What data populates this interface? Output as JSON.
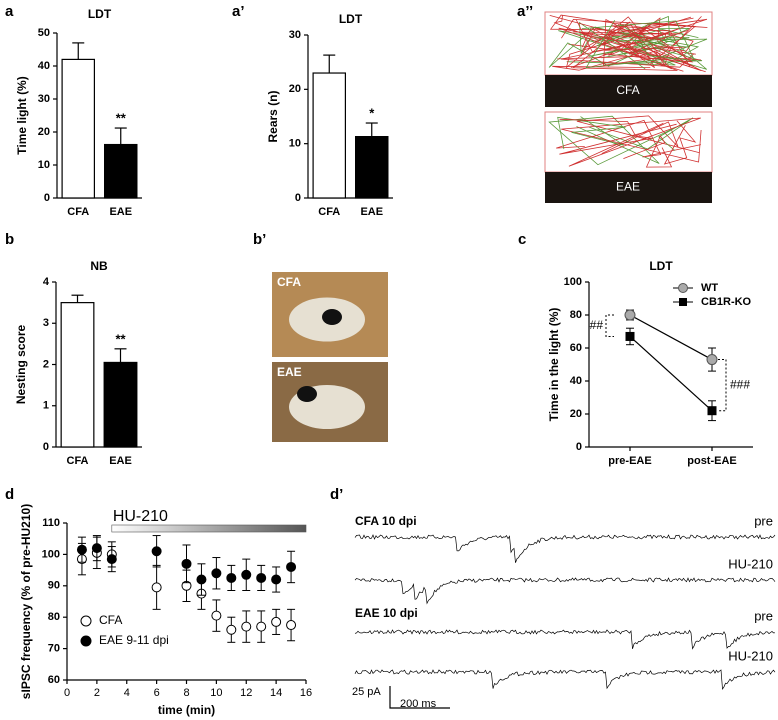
{
  "panels": [
    "a",
    "a’",
    "a’’",
    "b",
    "b’",
    "c",
    "d",
    "d’"
  ],
  "images": {
    "maze": [
      "CFA",
      "EAE"
    ],
    "nest": [
      "CFA",
      "EAE"
    ]
  },
  "traces": {
    "groups": [
      {
        "label": "CFA 10 dpi",
        "conditions": [
          "pre",
          "HU-210"
        ]
      },
      {
        "label": "EAE 10 dpi",
        "conditions": [
          "pre",
          "HU-210"
        ]
      }
    ],
    "scale_y": "25 pA",
    "scale_x": "200 ms"
  },
  "chart_data": [
    {
      "type": "bar",
      "title": "LDT",
      "y_label": "Time light (%)",
      "categories": [
        "CFA",
        "EAE"
      ],
      "values": [
        42,
        16.2
      ],
      "errors": [
        5,
        5
      ],
      "colors": [
        "#ffffff",
        "#000000"
      ],
      "annotations": [
        {
          "text": "**",
          "category": "EAE"
        }
      ],
      "ylim": [
        0,
        50
      ],
      "yticks": [
        0,
        10,
        20,
        30,
        40,
        50
      ]
    },
    {
      "type": "bar",
      "title": "LDT",
      "y_label": "Rears (n)",
      "categories": [
        "CFA",
        "EAE"
      ],
      "values": [
        23,
        11.3
      ],
      "errors": [
        3.3,
        2.5
      ],
      "colors": [
        "#ffffff",
        "#000000"
      ],
      "annotations": [
        {
          "text": "*",
          "category": "EAE"
        }
      ],
      "ylim": [
        0,
        30
      ],
      "yticks": [
        0,
        10,
        20,
        30
      ]
    },
    {
      "type": "bar",
      "title": "NB",
      "y_label": "Nesting score",
      "categories": [
        "CFA",
        "EAE"
      ],
      "values": [
        3.5,
        2.05
      ],
      "errors": [
        0.18,
        0.33
      ],
      "colors": [
        "#ffffff",
        "#000000"
      ],
      "annotations": [
        {
          "text": "**",
          "category": "EAE"
        }
      ],
      "ylim": [
        0,
        4
      ],
      "yticks": [
        0,
        1,
        2,
        3,
        4
      ]
    },
    {
      "type": "line",
      "title": "LDT",
      "y_label": "Time in the light (%)",
      "categories": [
        "pre-EAE",
        "post-EAE"
      ],
      "series": [
        {
          "name": "WT",
          "color": "#aaaaaa",
          "marker": "circle",
          "values": [
            80,
            53
          ],
          "errors": [
            3,
            7
          ]
        },
        {
          "name": "CB1R-KO",
          "color": "#000000",
          "marker": "square",
          "values": [
            67,
            22
          ],
          "errors": [
            5,
            6
          ]
        }
      ],
      "annotations": [
        {
          "text": "##",
          "category": "pre-EAE"
        },
        {
          "text": "###",
          "category": "post-EAE"
        }
      ],
      "ylim": [
        0,
        100
      ],
      "yticks": [
        0,
        20,
        40,
        60,
        80,
        100
      ]
    },
    {
      "type": "scatter",
      "x_label": "time (min)",
      "y_label": "sIPSC frequency (% of pre-HU210)",
      "treatment": {
        "label": "HU-210",
        "start": 3,
        "end": 16
      },
      "series": [
        {
          "name": "CFA",
          "color": "#ffffff",
          "x": [
            1,
            2,
            3,
            6,
            8,
            9,
            10,
            11,
            12,
            13,
            14,
            15
          ],
          "values": [
            98.5,
            100.5,
            100,
            89.5,
            90,
            87.5,
            80.5,
            76,
            77,
            77,
            78.5,
            77.5
          ],
          "errors": [
            5,
            5,
            4,
            7,
            5,
            5,
            5,
            4,
            5,
            5,
            4,
            5
          ]
        },
        {
          "name": "EAE 9-11 dpi",
          "color": "#000000",
          "x": [
            1,
            2,
            3,
            6,
            8,
            9,
            10,
            11,
            12,
            13,
            14,
            15
          ],
          "values": [
            101.5,
            102,
            98.5,
            101,
            97,
            92,
            94,
            92.5,
            93.5,
            92.5,
            92,
            96
          ],
          "errors": [
            4,
            4,
            4,
            5,
            6,
            5,
            5,
            4,
            5,
            4,
            4,
            5
          ]
        }
      ],
      "xlim": [
        0,
        16
      ],
      "xticks": [
        0,
        2,
        4,
        6,
        8,
        10,
        12,
        14,
        16
      ],
      "ylim": [
        60,
        110
      ],
      "yticks": [
        60,
        70,
        80,
        90,
        100,
        110
      ]
    }
  ]
}
